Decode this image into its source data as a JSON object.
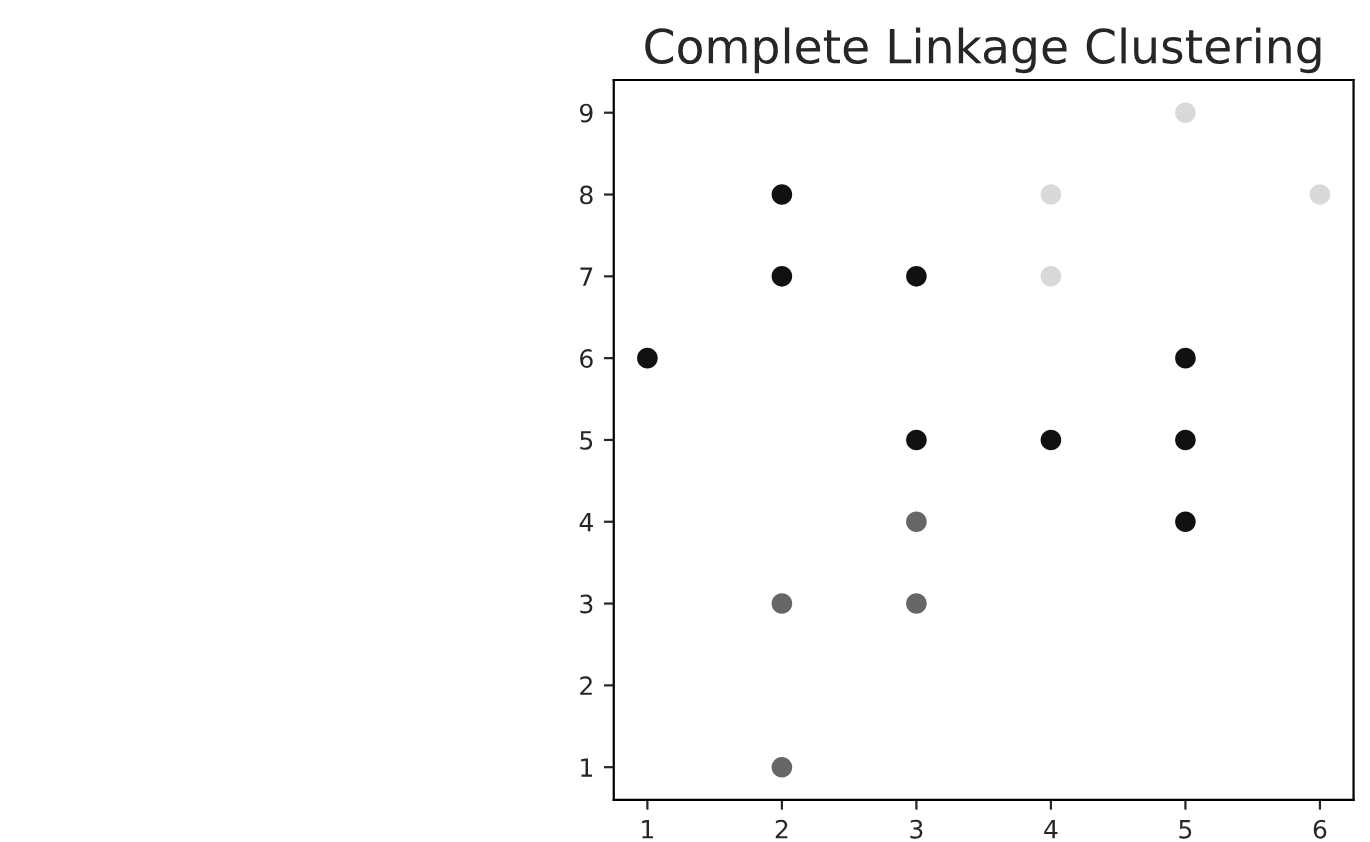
{
  "chart_data": {
    "type": "scatter",
    "title": "Complete Linkage Clustering",
    "xlim": [
      0.75,
      6.25
    ],
    "ylim": [
      0.6,
      9.4
    ],
    "xticks": [
      1,
      2,
      3,
      4,
      5,
      6
    ],
    "yticks": [
      1,
      2,
      3,
      4,
      5,
      6,
      7,
      8,
      9
    ],
    "marker": "circle",
    "grid": false,
    "legend": false,
    "series": [
      {
        "color": "#111111",
        "x": [
          1,
          2,
          2,
          3,
          3,
          4,
          5,
          5,
          5
        ],
        "values": [
          6,
          8,
          7,
          7,
          5,
          5,
          6,
          5,
          4
        ]
      },
      {
        "color": "#666666",
        "x": [
          2,
          2,
          3,
          3
        ],
        "values": [
          3,
          1,
          4,
          3
        ]
      },
      {
        "color": "#d9d9d9",
        "x": [
          4,
          4,
          5,
          6
        ],
        "values": [
          8,
          7,
          9,
          8
        ]
      }
    ]
  }
}
